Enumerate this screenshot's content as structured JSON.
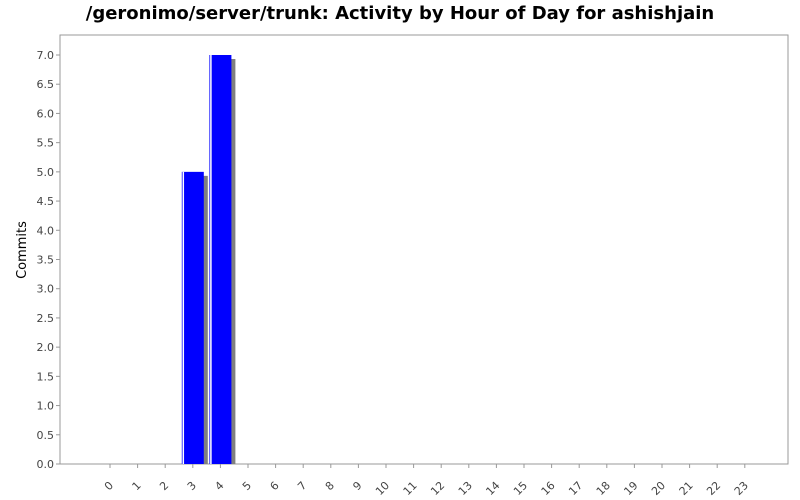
{
  "chart_data": {
    "type": "bar",
    "title": "/geronimo/server/trunk: Activity by Hour of Day for ashishjain",
    "xlabel": "",
    "ylabel": "Commits",
    "categories": [
      "0",
      "1",
      "2",
      "3",
      "4",
      "5",
      "6",
      "7",
      "8",
      "9",
      "10",
      "11",
      "12",
      "13",
      "14",
      "15",
      "16",
      "17",
      "18",
      "19",
      "20",
      "21",
      "22",
      "23"
    ],
    "values": [
      0,
      0,
      0,
      5,
      7,
      0,
      0,
      0,
      0,
      0,
      0,
      0,
      0,
      0,
      0,
      0,
      0,
      0,
      0,
      0,
      0,
      0,
      0,
      0
    ],
    "ylim": [
      0,
      7.0
    ],
    "yticks": [
      "0.0",
      "0.5",
      "1.0",
      "1.5",
      "2.0",
      "2.5",
      "3.0",
      "3.5",
      "4.0",
      "4.5",
      "5.0",
      "5.5",
      "6.0",
      "6.5",
      "7.0"
    ],
    "grid": false,
    "bar_color": "#0000ff",
    "shadow_color": "#808080"
  }
}
